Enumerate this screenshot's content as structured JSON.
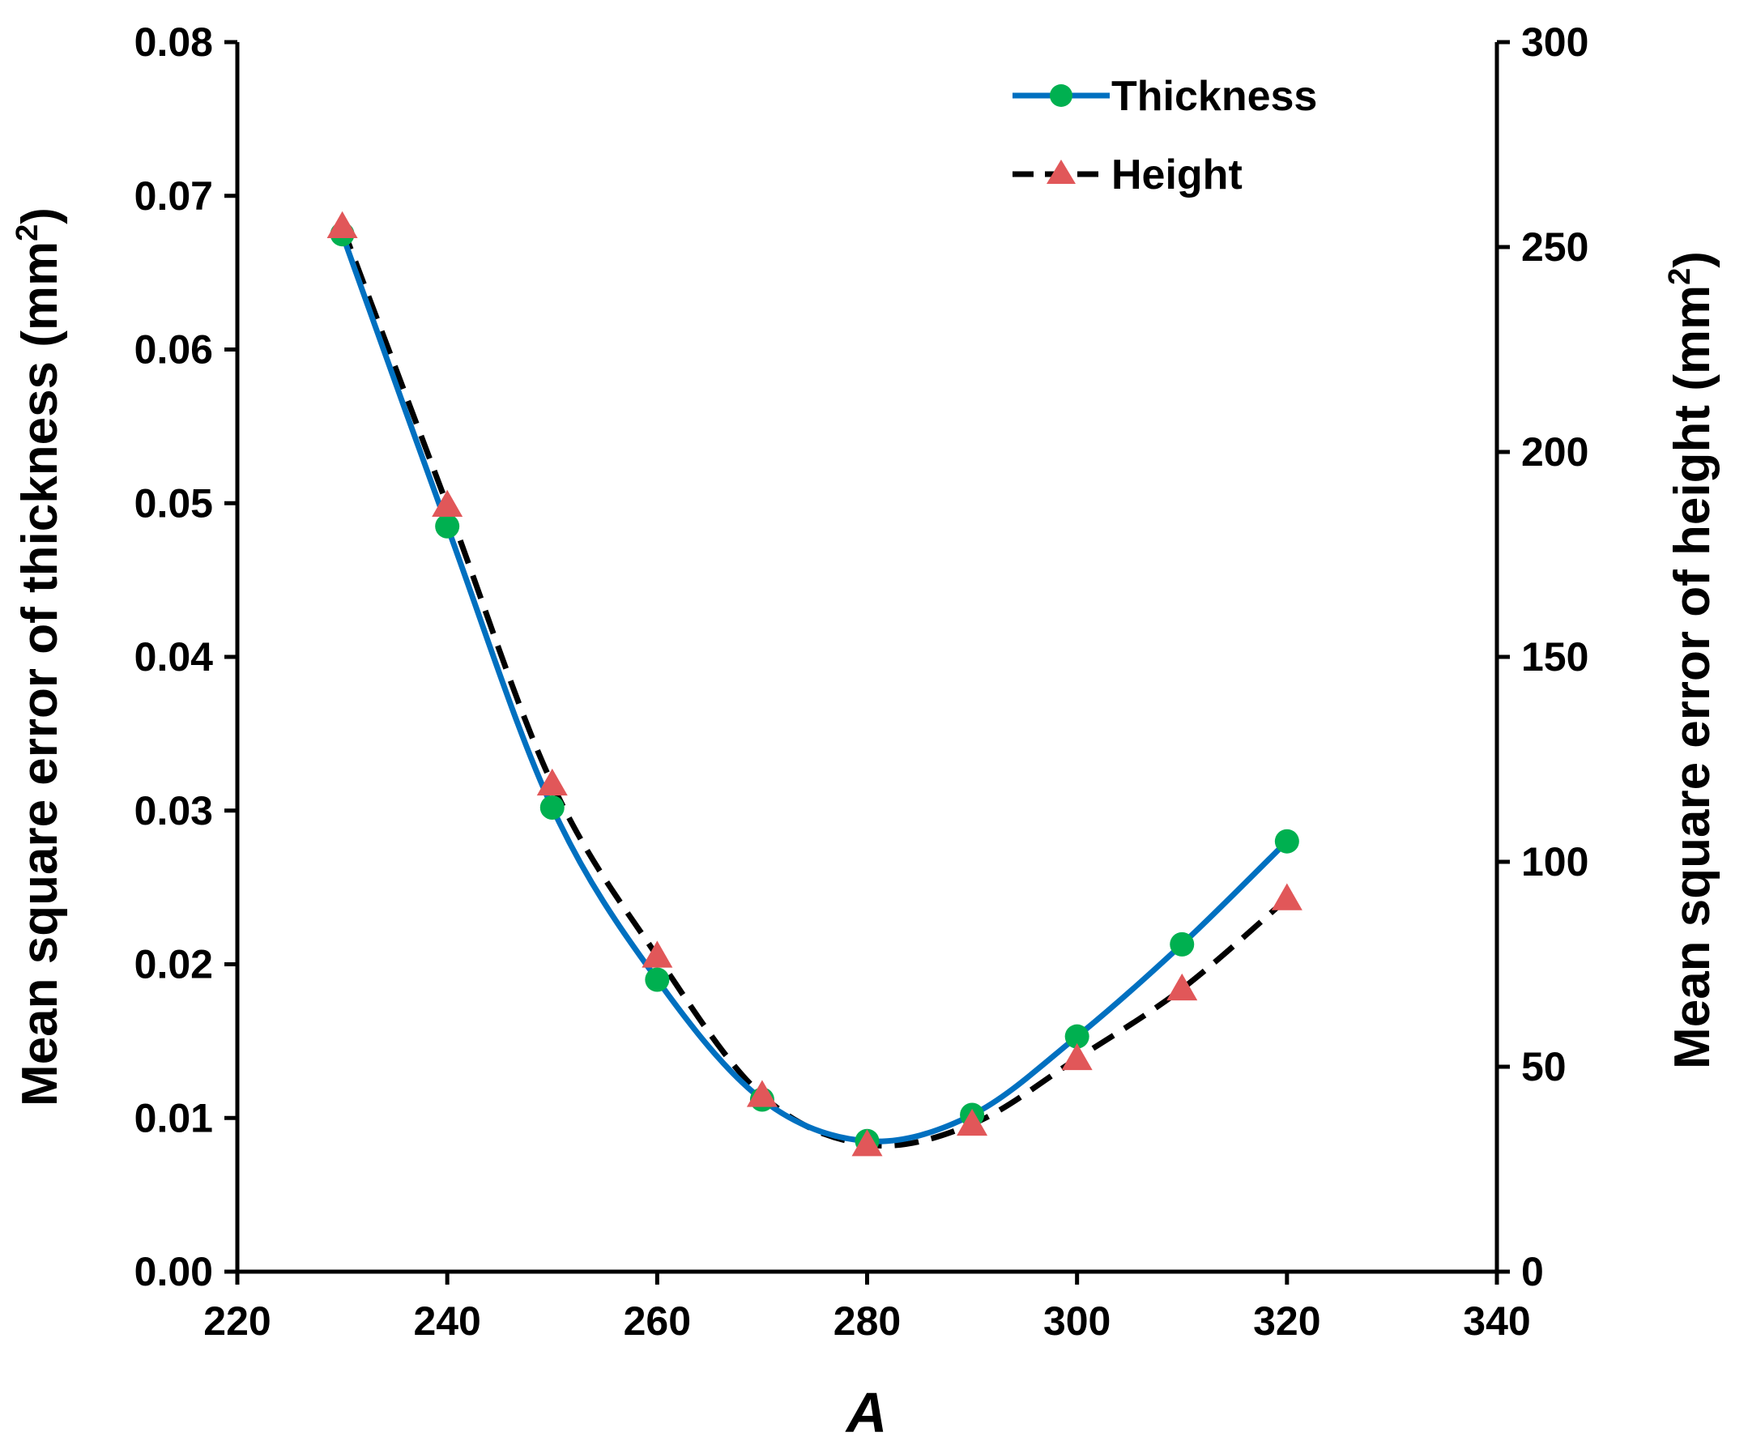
{
  "chart_data": {
    "type": "line",
    "xlabel": "A",
    "ylabel_left": "Mean square error of thickness (mm",
    "ylabel_left_sup": "2",
    "ylabel_left_close": ")",
    "ylabel_right": "Mean square error of height (mm",
    "ylabel_right_sup": "2",
    "ylabel_right_close": ")",
    "xlim": [
      220,
      340
    ],
    "ylim_left": [
      0,
      0.08
    ],
    "ylim_right": [
      0,
      300
    ],
    "x_ticks": [
      "220",
      "240",
      "260",
      "280",
      "300",
      "320",
      "340"
    ],
    "y_left_ticks": [
      "0.00",
      "0.01",
      "0.02",
      "0.03",
      "0.04",
      "0.05",
      "0.06",
      "0.07",
      "0.08"
    ],
    "y_right_ticks": [
      "0",
      "50",
      "100",
      "150",
      "200",
      "250",
      "300"
    ],
    "grid": false,
    "legend_position": "top-right",
    "series": [
      {
        "name": "Thickness",
        "axis": "left",
        "color": "#0070C0",
        "marker": "circle",
        "marker_color": "#00B050",
        "line_style": "solid-smooth",
        "x": [
          230,
          240,
          250,
          260,
          270,
          280,
          290,
          300,
          310,
          320
        ],
        "y": [
          0.0675,
          0.0485,
          0.0302,
          0.019,
          0.0112,
          0.0085,
          0.0102,
          0.0153,
          0.0213,
          0.028
        ]
      },
      {
        "name": "Height",
        "axis": "right",
        "color": "#000000",
        "marker": "triangle",
        "marker_color": "#E15759",
        "line_style": "dashed-smooth",
        "x": [
          230,
          240,
          250,
          260,
          270,
          280,
          290,
          300,
          310,
          320
        ],
        "y": [
          255,
          187,
          119,
          77,
          43,
          31,
          36,
          52,
          69,
          91
        ]
      }
    ]
  }
}
